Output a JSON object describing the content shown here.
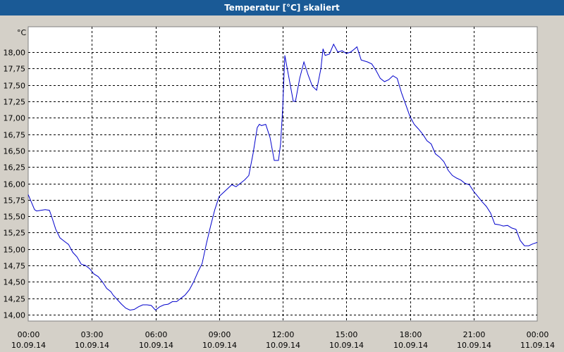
{
  "window": {
    "title": "Temperatur [°C] skaliert"
  },
  "chart_data": {
    "type": "line",
    "title": "Temperatur [°C] skaliert",
    "ylabel": "°C",
    "ylim": [
      13.9,
      18.25
    ],
    "y_ticks": [
      "14,00",
      "14,25",
      "14,50",
      "14,75",
      "15,00",
      "15,25",
      "15,50",
      "15,75",
      "16,00",
      "16,25",
      "16,50",
      "16,75",
      "17,00",
      "17,25",
      "17,50",
      "17,75",
      "18,00"
    ],
    "y_tick_values": [
      14.0,
      14.25,
      14.5,
      14.75,
      15.0,
      15.25,
      15.5,
      15.75,
      16.0,
      16.25,
      16.5,
      16.75,
      17.0,
      17.25,
      17.5,
      17.75,
      18.0
    ],
    "x_ticks": [
      {
        "time": "00:00",
        "date": "10.09.14"
      },
      {
        "time": "03:00",
        "date": "10.09.14"
      },
      {
        "time": "06:00",
        "date": "10.09.14"
      },
      {
        "time": "09:00",
        "date": "10.09.14"
      },
      {
        "time": "12:00",
        "date": "10.09.14"
      },
      {
        "time": "15:00",
        "date": "10.09.14"
      },
      {
        "time": "18:00",
        "date": "10.09.14"
      },
      {
        "time": "21:00",
        "date": "10.09.14"
      },
      {
        "time": "00:00",
        "date": "11.09.14"
      }
    ],
    "x_range_hours": [
      0,
      24
    ],
    "grid": true,
    "line_color": "#0000cc",
    "series": [
      {
        "x_hours": [
          0,
          0.3,
          0.4,
          0.6,
          0.8,
          1.0,
          1.1,
          1.3,
          1.5,
          1.7,
          1.9,
          2.1,
          2.3,
          2.5,
          2.7,
          2.9,
          3.1,
          3.3,
          3.5,
          3.7,
          3.9,
          4.0,
          4.2,
          4.4,
          4.6,
          4.8,
          5.0,
          5.2,
          5.4,
          5.6,
          5.8,
          6.0,
          6.2,
          6.4,
          6.6,
          6.8,
          7.0,
          7.2,
          7.4,
          7.6,
          7.8,
          8.0,
          8.2,
          8.4,
          8.6,
          8.8,
          9.0,
          9.2,
          9.4,
          9.6,
          9.8,
          10.0,
          10.2,
          10.4,
          10.6,
          10.8,
          10.9,
          11.0,
          11.2,
          11.4,
          11.6,
          11.8,
          11.9,
          12.0,
          12.1,
          12.3,
          12.5,
          12.6,
          12.8,
          13.0,
          13.2,
          13.4,
          13.6,
          13.8,
          13.9,
          14.0,
          14.2,
          14.4,
          14.6,
          14.8,
          15.0,
          15.2,
          15.4,
          15.5,
          15.7,
          16.0,
          16.2,
          16.4,
          16.6,
          16.8,
          17.0,
          17.2,
          17.4,
          17.6,
          17.8,
          18.0,
          18.2,
          18.4,
          18.6,
          18.8,
          19.0,
          19.2,
          19.4,
          19.6,
          19.8,
          20.0,
          20.2,
          20.4,
          20.6,
          20.8,
          21.0,
          21.2,
          21.4,
          21.6,
          21.8,
          22.0,
          22.2,
          22.4,
          22.6,
          22.8,
          23.0,
          23.2,
          23.4,
          23.6,
          23.8,
          24.0
        ],
        "y": [
          15.83,
          15.6,
          15.58,
          15.59,
          15.6,
          15.59,
          15.5,
          15.3,
          15.17,
          15.12,
          15.07,
          14.95,
          14.88,
          14.77,
          14.75,
          14.7,
          14.62,
          14.58,
          14.5,
          14.4,
          14.35,
          14.3,
          14.23,
          14.16,
          14.1,
          14.07,
          14.08,
          14.12,
          14.15,
          14.15,
          14.14,
          14.07,
          14.12,
          14.15,
          14.16,
          14.2,
          14.2,
          14.25,
          14.3,
          14.38,
          14.5,
          14.65,
          14.78,
          15.08,
          15.35,
          15.6,
          15.8,
          15.86,
          15.92,
          15.98,
          15.95,
          16.0,
          16.05,
          16.12,
          16.45,
          16.85,
          16.9,
          16.88,
          16.9,
          16.7,
          16.35,
          16.35,
          16.6,
          17.15,
          17.95,
          17.6,
          17.25,
          17.25,
          17.6,
          17.85,
          17.65,
          17.48,
          17.42,
          17.75,
          18.05,
          17.95,
          17.97,
          18.12,
          18.0,
          18.02,
          17.98,
          18.0,
          18.05,
          18.08,
          17.88,
          17.85,
          17.82,
          17.72,
          17.6,
          17.55,
          17.58,
          17.64,
          17.6,
          17.38,
          17.2,
          17.02,
          16.9,
          16.83,
          16.75,
          16.65,
          16.6,
          16.45,
          16.4,
          16.33,
          16.2,
          16.12,
          16.08,
          16.05,
          16.0,
          15.98,
          15.88,
          15.8,
          15.72,
          15.65,
          15.55,
          15.38,
          15.37,
          15.35,
          15.36,
          15.32,
          15.3,
          15.13,
          15.05,
          15.05,
          15.08,
          15.1
        ]
      }
    ]
  }
}
